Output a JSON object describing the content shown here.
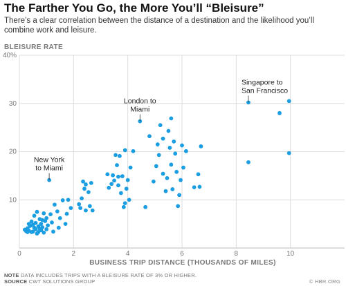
{
  "header": {
    "title": "The Farther You Go, the More You’ll “Bleisure”",
    "subtitle": "There’s a clear correlation between the distance of a destination and the likelihood you’ll combine work and leisure."
  },
  "footer": {
    "note_label": "NOTE",
    "note_text": "DATA INCLUDES TRIPS WITH A BLEISURE RATE OF 3% OR HIGHER.",
    "source_label": "SOURCE",
    "source_text": "CWT SOLUTIONS GROUP",
    "credit": "© HBR.ORG"
  },
  "colors": {
    "point": "#1b9de2",
    "grid": "#dddddd",
    "tick_text": "#777777",
    "annotation_text": "#222222"
  },
  "chart_data": {
    "type": "scatter",
    "title": "The Farther You Go, the More You’ll “Bleisure”",
    "xlabel": "BUSINESS TRIP DISTANCE (THOUSANDS OF MILES)",
    "ylabel": "BLEISURE RATE",
    "xlim": [
      0,
      12
    ],
    "ylim": [
      0,
      40
    ],
    "x_ticks": [
      0,
      2,
      4,
      6,
      8,
      10
    ],
    "x_tick_labels": [
      "0",
      "2",
      "4",
      "6",
      "8",
      "10"
    ],
    "y_ticks": [
      10,
      20,
      30,
      40
    ],
    "y_tick_labels": [
      "10",
      "20",
      "30",
      "40%"
    ],
    "grid": true,
    "annotations": [
      {
        "label": "New York to Miami",
        "lines": [
          "New York",
          "to Miami"
        ],
        "x": 1.1,
        "y": 14.1
      },
      {
        "label": "London to Miami",
        "lines": [
          "London to",
          "Miami"
        ],
        "x": 4.45,
        "y": 26.3
      },
      {
        "label": "Singapore to San Francisco",
        "lines": [
          "Singapore to",
          "San Francisco"
        ],
        "x": 8.45,
        "y": 30.2
      }
    ],
    "points": [
      [
        0.2,
        3.8
      ],
      [
        0.25,
        3.5
      ],
      [
        0.3,
        4.1
      ],
      [
        0.35,
        3.6
      ],
      [
        0.4,
        4.6
      ],
      [
        0.45,
        5.5
      ],
      [
        0.5,
        3.4
      ],
      [
        0.55,
        4.2
      ],
      [
        0.55,
        6.7
      ],
      [
        0.6,
        3.9
      ],
      [
        0.6,
        5.2
      ],
      [
        0.65,
        7.5
      ],
      [
        0.7,
        3.3
      ],
      [
        0.7,
        4.5
      ],
      [
        0.75,
        6.0
      ],
      [
        0.8,
        3.7
      ],
      [
        0.8,
        5.0
      ],
      [
        0.85,
        4.3
      ],
      [
        0.9,
        7.2
      ],
      [
        0.9,
        3.2
      ],
      [
        0.95,
        5.6
      ],
      [
        1.0,
        6.2
      ],
      [
        1.0,
        3.9
      ],
      [
        1.05,
        4.7
      ],
      [
        1.1,
        14.1
      ],
      [
        1.15,
        7.0
      ],
      [
        1.2,
        5.3
      ],
      [
        1.25,
        3.4
      ],
      [
        0.35,
        5.0
      ],
      [
        0.45,
        3.3
      ],
      [
        0.75,
        4.0
      ],
      [
        0.5,
        4.8
      ],
      [
        0.65,
        3.0
      ],
      [
        0.85,
        5.8
      ],
      [
        0.3,
        3.3
      ],
      [
        1.3,
        9.0
      ],
      [
        1.4,
        7.6
      ],
      [
        1.45,
        4.2
      ],
      [
        1.5,
        6.2
      ],
      [
        1.6,
        9.9
      ],
      [
        1.7,
        5.0
      ],
      [
        1.75,
        7.1
      ],
      [
        1.8,
        10.0
      ],
      [
        1.9,
        8.3
      ],
      [
        2.2,
        9.1
      ],
      [
        2.25,
        8.3
      ],
      [
        2.3,
        10.3
      ],
      [
        2.35,
        13.8
      ],
      [
        2.4,
        12.3
      ],
      [
        2.45,
        13.2
      ],
      [
        2.45,
        7.8
      ],
      [
        2.55,
        11.6
      ],
      [
        2.6,
        8.7
      ],
      [
        2.65,
        13.5
      ],
      [
        2.7,
        7.8
      ],
      [
        3.25,
        15.3
      ],
      [
        3.3,
        12.5
      ],
      [
        3.4,
        13.3
      ],
      [
        3.45,
        15.1
      ],
      [
        3.5,
        14.0
      ],
      [
        3.55,
        19.3
      ],
      [
        3.6,
        17.2
      ],
      [
        3.65,
        14.8
      ],
      [
        3.65,
        13.0
      ],
      [
        3.7,
        19.1
      ],
      [
        3.75,
        11.4
      ],
      [
        3.8,
        14.9
      ],
      [
        3.85,
        8.5
      ],
      [
        3.9,
        9.3
      ],
      [
        3.9,
        20.3
      ],
      [
        3.95,
        12.3
      ],
      [
        4.0,
        14.1
      ],
      [
        4.05,
        10.0
      ],
      [
        4.1,
        16.7
      ],
      [
        4.2,
        20.1
      ],
      [
        4.45,
        26.3
      ],
      [
        4.65,
        8.5
      ],
      [
        4.8,
        23.2
      ],
      [
        4.95,
        13.8
      ],
      [
        5.05,
        17.0
      ],
      [
        5.1,
        21.5
      ],
      [
        5.15,
        19.3
      ],
      [
        5.2,
        25.5
      ],
      [
        5.3,
        22.7
      ],
      [
        5.3,
        15.4
      ],
      [
        5.4,
        11.8
      ],
      [
        5.45,
        14.5
      ],
      [
        5.5,
        24.3
      ],
      [
        5.55,
        20.8
      ],
      [
        5.6,
        26.9
      ],
      [
        5.6,
        17.3
      ],
      [
        5.65,
        12.2
      ],
      [
        5.7,
        22.1
      ],
      [
        5.75,
        19.6
      ],
      [
        5.8,
        15.8
      ],
      [
        5.85,
        8.7
      ],
      [
        5.9,
        11.0
      ],
      [
        5.95,
        14.1
      ],
      [
        6.0,
        21.3
      ],
      [
        6.05,
        16.7
      ],
      [
        6.15,
        20.1
      ],
      [
        6.45,
        12.6
      ],
      [
        6.6,
        15.3
      ],
      [
        6.65,
        12.7
      ],
      [
        6.7,
        21.1
      ],
      [
        8.45,
        30.2
      ],
      [
        8.45,
        17.8
      ],
      [
        9.6,
        28.0
      ],
      [
        9.95,
        30.5
      ],
      [
        9.95,
        19.7
      ]
    ]
  }
}
